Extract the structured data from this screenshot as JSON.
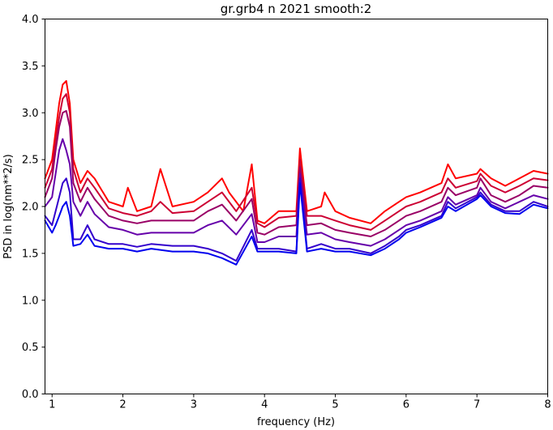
{
  "chart_data": {
    "type": "line",
    "title": "gr.grb4 n 2021 smooth:2",
    "xlabel": "frequency (Hz)",
    "ylabel": "PSD in log(nm**2/s)",
    "xlim": [
      0.9,
      8.0
    ],
    "ylim": [
      0.0,
      4.0
    ],
    "xticks": [
      1,
      2,
      3,
      4,
      5,
      6,
      7,
      8
    ],
    "yticks": [
      0.0,
      0.5,
      1.0,
      1.5,
      2.0,
      2.5,
      3.0,
      3.5,
      4.0
    ],
    "grid": false,
    "legend": "none",
    "series": [
      {
        "color": "#ff0000",
        "x": [
          0.9,
          1.0,
          1.05,
          1.1,
          1.15,
          1.2,
          1.25,
          1.3,
          1.4,
          1.5,
          1.6,
          1.8,
          2.0,
          2.07,
          2.2,
          2.4,
          2.53,
          2.7,
          3.0,
          3.2,
          3.4,
          3.5,
          3.7,
          3.82,
          3.9,
          4.0,
          4.2,
          4.45,
          4.5,
          4.6,
          4.8,
          4.85,
          5.0,
          5.2,
          5.5,
          5.7,
          5.9,
          6.0,
          6.2,
          6.5,
          6.59,
          6.7,
          7.0,
          7.05,
          7.2,
          7.4,
          7.6,
          7.8,
          8.0
        ],
        "y": [
          2.3,
          2.5,
          2.8,
          3.1,
          3.3,
          3.34,
          3.1,
          2.5,
          2.25,
          2.38,
          2.3,
          2.05,
          2.0,
          2.2,
          1.95,
          2.0,
          2.4,
          2.0,
          2.05,
          2.15,
          2.3,
          2.15,
          1.95,
          2.45,
          1.85,
          1.82,
          1.95,
          1.95,
          2.62,
          1.95,
          2.0,
          2.15,
          1.95,
          1.88,
          1.82,
          1.95,
          2.05,
          2.1,
          2.15,
          2.25,
          2.45,
          2.3,
          2.35,
          2.4,
          2.3,
          2.22,
          2.3,
          2.38,
          2.35
        ]
      },
      {
        "color": "#cc0033",
        "x": [
          0.9,
          1.0,
          1.05,
          1.1,
          1.15,
          1.2,
          1.25,
          1.3,
          1.4,
          1.5,
          1.6,
          1.8,
          2.0,
          2.2,
          2.4,
          2.53,
          2.7,
          3.0,
          3.2,
          3.4,
          3.6,
          3.82,
          3.9,
          4.0,
          4.2,
          4.45,
          4.5,
          4.6,
          4.8,
          5.0,
          5.2,
          5.5,
          5.7,
          5.9,
          6.0,
          6.2,
          6.5,
          6.59,
          6.7,
          7.0,
          7.05,
          7.2,
          7.4,
          7.6,
          7.8,
          8.0
        ],
        "y": [
          2.2,
          2.4,
          2.7,
          2.95,
          3.15,
          3.2,
          3.0,
          2.4,
          2.15,
          2.3,
          2.2,
          1.98,
          1.93,
          1.9,
          1.95,
          2.05,
          1.93,
          1.95,
          2.05,
          2.15,
          1.95,
          2.2,
          1.82,
          1.78,
          1.88,
          1.9,
          2.5,
          1.9,
          1.9,
          1.85,
          1.8,
          1.75,
          1.85,
          1.95,
          2.0,
          2.05,
          2.15,
          2.3,
          2.2,
          2.27,
          2.35,
          2.22,
          2.15,
          2.22,
          2.3,
          2.28
        ]
      },
      {
        "color": "#990066",
        "x": [
          0.9,
          1.0,
          1.05,
          1.1,
          1.15,
          1.2,
          1.25,
          1.3,
          1.4,
          1.5,
          1.6,
          1.8,
          2.0,
          2.2,
          2.4,
          2.7,
          3.0,
          3.2,
          3.4,
          3.6,
          3.82,
          3.9,
          4.0,
          4.2,
          4.45,
          4.5,
          4.6,
          4.8,
          5.0,
          5.2,
          5.5,
          5.7,
          5.9,
          6.0,
          6.2,
          6.5,
          6.59,
          6.7,
          7.0,
          7.05,
          7.2,
          7.4,
          7.6,
          7.8,
          8.0
        ],
        "y": [
          2.1,
          2.3,
          2.6,
          2.85,
          3.0,
          3.02,
          2.85,
          2.25,
          2.05,
          2.2,
          2.08,
          1.9,
          1.85,
          1.82,
          1.85,
          1.85,
          1.85,
          1.95,
          2.02,
          1.85,
          2.08,
          1.72,
          1.7,
          1.78,
          1.8,
          2.42,
          1.8,
          1.82,
          1.75,
          1.72,
          1.68,
          1.75,
          1.85,
          1.9,
          1.95,
          2.05,
          2.2,
          2.12,
          2.2,
          2.3,
          2.12,
          2.05,
          2.12,
          2.22,
          2.2
        ]
      },
      {
        "color": "#6600aa",
        "x": [
          0.9,
          1.0,
          1.05,
          1.1,
          1.15,
          1.2,
          1.25,
          1.3,
          1.4,
          1.5,
          1.6,
          1.8,
          2.0,
          2.2,
          2.4,
          2.7,
          3.0,
          3.2,
          3.4,
          3.6,
          3.82,
          3.9,
          4.0,
          4.2,
          4.45,
          4.5,
          4.6,
          4.8,
          5.0,
          5.2,
          5.5,
          5.7,
          5.9,
          6.0,
          6.2,
          6.5,
          6.59,
          6.7,
          7.0,
          7.05,
          7.2,
          7.4,
          7.6,
          7.8,
          8.0
        ],
        "y": [
          2.0,
          2.1,
          2.35,
          2.6,
          2.72,
          2.6,
          2.45,
          2.05,
          1.9,
          2.05,
          1.92,
          1.78,
          1.75,
          1.7,
          1.72,
          1.72,
          1.72,
          1.8,
          1.85,
          1.7,
          1.92,
          1.62,
          1.62,
          1.68,
          1.68,
          2.35,
          1.7,
          1.72,
          1.65,
          1.62,
          1.58,
          1.65,
          1.75,
          1.8,
          1.85,
          1.95,
          2.1,
          2.02,
          2.12,
          2.2,
          2.05,
          1.98,
          2.05,
          2.12,
          2.08
        ]
      },
      {
        "color": "#3300cc",
        "x": [
          0.9,
          1.0,
          1.05,
          1.1,
          1.15,
          1.2,
          1.25,
          1.3,
          1.4,
          1.5,
          1.6,
          1.8,
          2.0,
          2.2,
          2.4,
          2.7,
          3.0,
          3.2,
          3.4,
          3.6,
          3.82,
          3.9,
          4.0,
          4.2,
          4.45,
          4.5,
          4.6,
          4.8,
          5.0,
          5.2,
          5.5,
          5.7,
          5.9,
          6.0,
          6.2,
          6.5,
          6.59,
          6.7,
          7.0,
          7.05,
          7.2,
          7.4,
          7.6,
          7.8,
          8.0
        ],
        "y": [
          1.9,
          1.8,
          1.95,
          2.1,
          2.25,
          2.3,
          2.15,
          1.65,
          1.65,
          1.8,
          1.65,
          1.6,
          1.6,
          1.57,
          1.6,
          1.58,
          1.58,
          1.55,
          1.5,
          1.42,
          1.75,
          1.55,
          1.55,
          1.55,
          1.52,
          2.3,
          1.55,
          1.6,
          1.55,
          1.55,
          1.5,
          1.58,
          1.68,
          1.75,
          1.8,
          1.9,
          2.05,
          1.98,
          2.1,
          2.15,
          2.02,
          1.95,
          1.95,
          2.05,
          2.0
        ]
      },
      {
        "color": "#0000ee",
        "x": [
          0.9,
          1.0,
          1.05,
          1.1,
          1.15,
          1.2,
          1.25,
          1.3,
          1.4,
          1.5,
          1.6,
          1.8,
          2.0,
          2.2,
          2.4,
          2.7,
          3.0,
          3.2,
          3.4,
          3.6,
          3.82,
          3.9,
          4.0,
          4.2,
          4.45,
          4.5,
          4.6,
          4.8,
          5.0,
          5.2,
          5.5,
          5.7,
          5.9,
          6.0,
          6.2,
          6.5,
          6.59,
          6.7,
          7.0,
          7.05,
          7.2,
          7.4,
          7.6,
          7.8,
          8.0
        ],
        "y": [
          1.85,
          1.72,
          1.8,
          1.9,
          2.0,
          2.05,
          1.9,
          1.58,
          1.6,
          1.7,
          1.58,
          1.55,
          1.55,
          1.52,
          1.55,
          1.52,
          1.52,
          1.5,
          1.45,
          1.38,
          1.68,
          1.52,
          1.52,
          1.52,
          1.5,
          2.25,
          1.52,
          1.55,
          1.52,
          1.52,
          1.48,
          1.55,
          1.65,
          1.72,
          1.78,
          1.88,
          2.0,
          1.95,
          2.08,
          2.12,
          2.0,
          1.93,
          1.92,
          2.02,
          1.98
        ]
      }
    ]
  }
}
